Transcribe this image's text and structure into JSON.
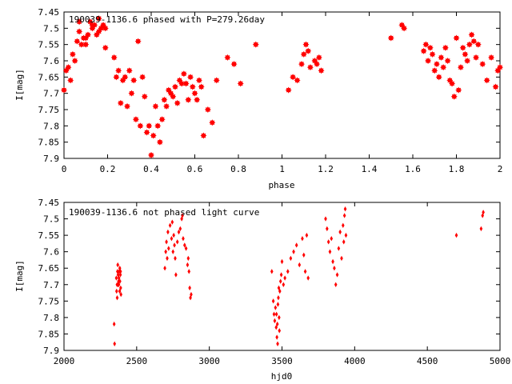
{
  "chart_data": [
    {
      "type": "scatter",
      "title": "190039-1136.6 phased with P=279.26day",
      "xlabel": "phase",
      "ylabel": "I[mag]",
      "xlim": [
        0,
        2
      ],
      "ylim": [
        7.9,
        7.45
      ],
      "y_inverted": true,
      "xticks": [
        "0",
        "0.2",
        "0.4",
        "0.6",
        "0.8",
        "1",
        "1.2",
        "1.4",
        "1.6",
        "1.8",
        "2"
      ],
      "yticks": [
        "7.45",
        "7.5",
        "7.55",
        "7.6",
        "7.65",
        "7.7",
        "7.75",
        "7.8",
        "7.85",
        "7.9"
      ],
      "marker": "star",
      "color": "#ff0000",
      "series": [
        {
          "x": [
            0.0,
            0.01,
            0.02,
            0.03,
            0.04,
            0.05,
            0.06,
            0.07,
            0.08,
            0.09,
            0.1,
            0.11,
            0.12,
            0.13,
            0.14,
            0.15,
            0.16,
            0.17,
            0.18,
            0.19,
            0.07,
            0.1,
            0.13,
            0.16,
            0.19,
            0.23,
            0.24,
            0.25,
            0.26,
            0.27,
            0.28,
            0.29,
            0.3,
            0.31,
            0.32,
            0.33,
            0.34,
            0.35,
            0.36,
            0.37,
            0.38,
            0.39,
            0.4,
            0.41,
            0.42,
            0.43,
            0.44,
            0.45,
            0.46,
            0.47,
            0.48,
            0.49,
            0.5,
            0.51,
            0.52,
            0.53,
            0.54,
            0.55,
            0.56,
            0.57,
            0.58,
            0.59,
            0.6,
            0.61,
            0.62,
            0.63,
            0.64,
            0.66,
            0.68,
            0.7,
            0.75,
            0.78,
            0.81,
            0.88,
            1.03,
            1.05,
            1.07,
            1.09,
            1.1,
            1.11,
            1.12,
            1.13,
            1.15,
            1.16,
            1.17,
            1.18,
            1.5,
            1.55,
            1.56,
            1.65,
            1.66,
            1.67,
            1.68,
            1.69,
            1.7,
            1.71,
            1.72,
            1.73,
            1.74,
            1.75,
            1.76,
            1.77,
            1.78,
            1.79,
            1.8,
            1.81,
            1.82,
            1.83,
            1.84,
            1.85,
            1.86,
            1.87,
            1.88,
            1.89,
            1.9,
            1.92,
            1.94,
            1.96,
            1.98,
            1.99,
            2.0
          ],
          "y": [
            7.69,
            7.63,
            7.62,
            7.66,
            7.58,
            7.6,
            7.54,
            7.48,
            7.55,
            7.53,
            7.55,
            7.52,
            7.48,
            7.5,
            7.49,
            7.52,
            7.47,
            7.5,
            7.49,
            7.56,
            7.51,
            7.53,
            7.49,
            7.51,
            7.5,
            7.59,
            7.65,
            7.63,
            7.73,
            7.66,
            7.65,
            7.74,
            7.63,
            7.7,
            7.66,
            7.78,
            7.54,
            7.8,
            7.65,
            7.71,
            7.82,
            7.8,
            7.89,
            7.83,
            7.74,
            7.8,
            7.85,
            7.78,
            7.72,
            7.74,
            7.69,
            7.7,
            7.71,
            7.68,
            7.73,
            7.66,
            7.67,
            7.64,
            7.67,
            7.72,
            7.65,
            7.68,
            7.7,
            7.72,
            7.66,
            7.68,
            7.83,
            7.75,
            7.79,
            7.66,
            7.59,
            7.61,
            7.67,
            7.55,
            7.69,
            7.65,
            7.66,
            7.61,
            7.58,
            7.55,
            7.57,
            7.62,
            7.6,
            7.61,
            7.59,
            7.63,
            7.53,
            7.49,
            7.5,
            7.57,
            7.55,
            7.6,
            7.56,
            7.58,
            7.63,
            7.61,
            7.65,
            7.59,
            7.62,
            7.56,
            7.6,
            7.66,
            7.67,
            7.71,
            7.53,
            7.69,
            7.62,
            7.56,
            7.58,
            7.6,
            7.55,
            7.52,
            7.54,
            7.59,
            7.55,
            7.61,
            7.66,
            7.59,
            7.68,
            7.63,
            7.62
          ]
        }
      ]
    },
    {
      "type": "scatter",
      "title": "190039-1136.6 not phased light curve",
      "xlabel": "hjd0",
      "ylabel": "I[mag]",
      "xlim": [
        2000,
        5000
      ],
      "ylim": [
        7.9,
        7.45
      ],
      "y_inverted": true,
      "xticks": [
        "2000",
        "2500",
        "3000",
        "3500",
        "4000",
        "4500",
        "5000"
      ],
      "yticks": [
        "7.45",
        "7.5",
        "7.55",
        "7.6",
        "7.65",
        "7.7",
        "7.75",
        "7.8",
        "7.85",
        "7.9"
      ],
      "marker": "diamond",
      "color": "#ff0000",
      "series": [
        {
          "x": [
            2345,
            2348,
            2360,
            2362,
            2365,
            2368,
            2370,
            2372,
            2375,
            2377,
            2380,
            2383,
            2385,
            2388,
            2390,
            2392,
            2366,
            2371,
            2378,
            2384,
            2389,
            2694,
            2700,
            2705,
            2710,
            2715,
            2720,
            2730,
            2740,
            2745,
            2750,
            2755,
            2760,
            2765,
            2770,
            2780,
            2790,
            2800,
            2810,
            2815,
            2820,
            2830,
            2840,
            2850,
            2855,
            2860,
            2865,
            2870,
            2875,
            3430,
            3440,
            3445,
            3450,
            3455,
            3460,
            3462,
            3465,
            3468,
            3470,
            3472,
            3475,
            3478,
            3480,
            3482,
            3485,
            3490,
            3495,
            3500,
            3510,
            3520,
            3540,
            3560,
            3580,
            3600,
            3620,
            3640,
            3650,
            3660,
            3670,
            3680,
            3800,
            3810,
            3820,
            3830,
            3840,
            3850,
            3860,
            3870,
            3880,
            3890,
            3900,
            3910,
            3920,
            3925,
            3930,
            3935,
            3940,
            4700,
            4870,
            4880,
            4885
          ],
          "y": [
            7.82,
            7.88,
            7.68,
            7.72,
            7.7,
            7.66,
            7.64,
            7.67,
            7.69,
            7.7,
            7.66,
            7.72,
            7.69,
            7.67,
            7.71,
            7.73,
            7.74,
            7.7,
            7.68,
            7.65,
            7.66,
            7.65,
            7.6,
            7.57,
            7.62,
            7.54,
            7.59,
            7.52,
            7.56,
            7.51,
            7.6,
            7.55,
            7.58,
            7.62,
            7.67,
            7.57,
            7.54,
            7.53,
            7.5,
            7.49,
            7.56,
            7.58,
            7.59,
            7.64,
            7.62,
            7.66,
            7.71,
            7.74,
            7.73,
            7.66,
            7.75,
            7.79,
            7.81,
            7.77,
            7.83,
            7.79,
            7.86,
            7.82,
            7.88,
            7.76,
            7.74,
            7.71,
            7.8,
            7.84,
            7.72,
            7.69,
            7.67,
            7.63,
            7.7,
            7.68,
            7.66,
            7.62,
            7.6,
            7.58,
            7.64,
            7.56,
            7.61,
            7.66,
            7.55,
            7.68,
            7.5,
            7.53,
            7.57,
            7.6,
            7.56,
            7.63,
            7.65,
            7.7,
            7.67,
            7.59,
            7.54,
            7.62,
            7.52,
            7.57,
            7.49,
            7.47,
            7.55,
            7.55,
            7.53,
            7.49,
            7.48
          ]
        }
      ]
    }
  ]
}
